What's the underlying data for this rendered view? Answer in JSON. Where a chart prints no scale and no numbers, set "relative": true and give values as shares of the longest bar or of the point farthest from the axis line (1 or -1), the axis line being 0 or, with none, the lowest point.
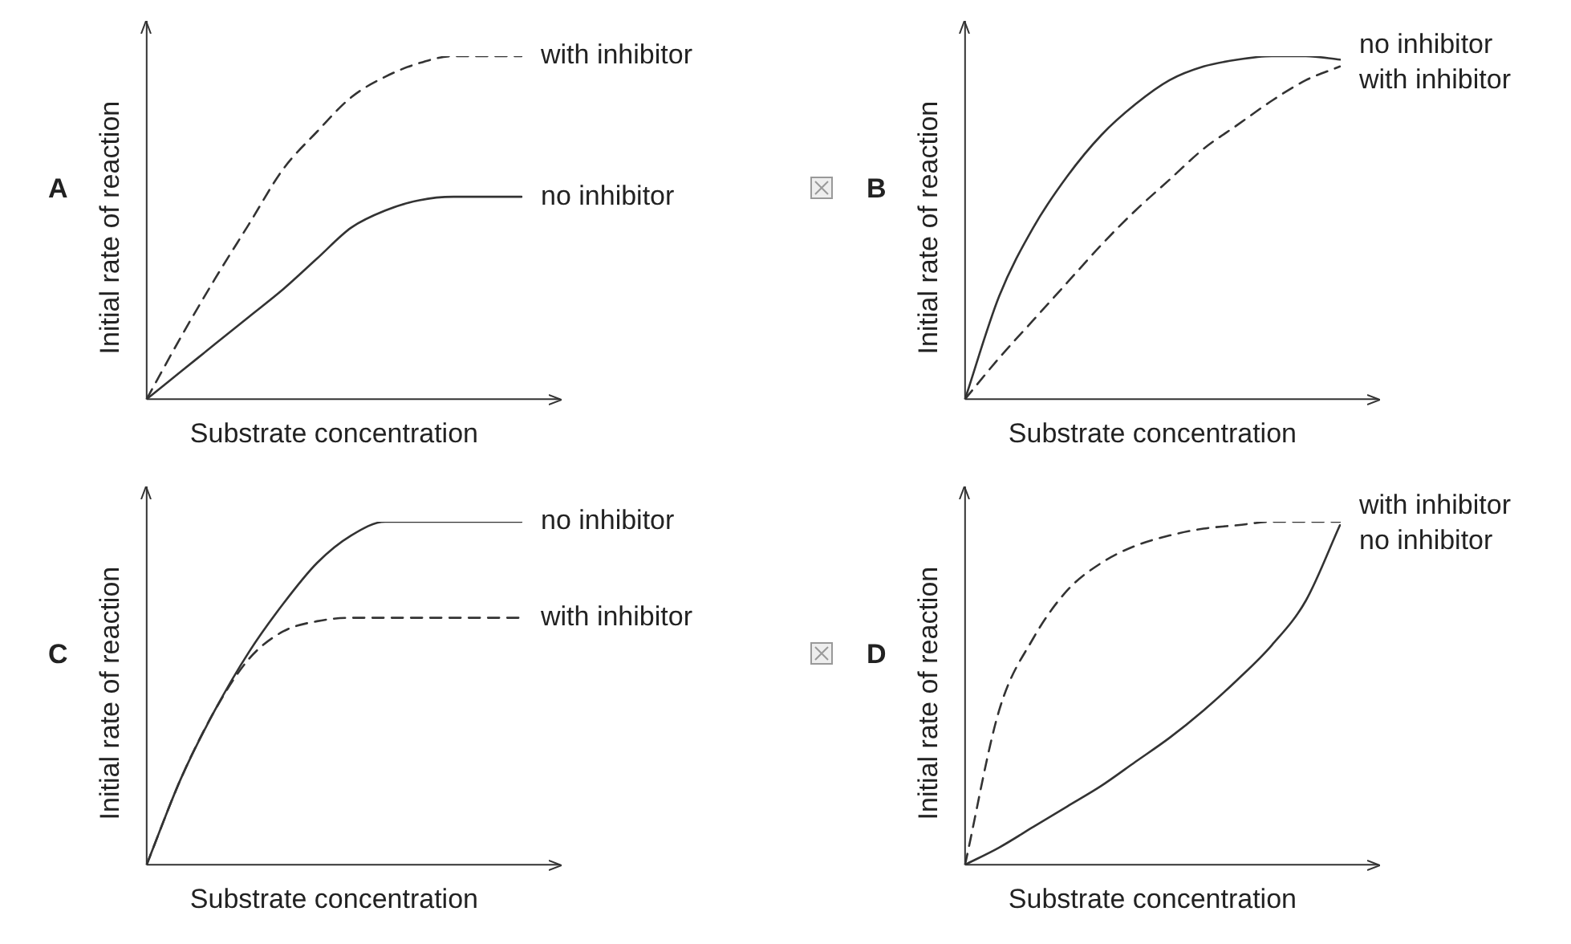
{
  "chart_data": [
    {
      "type": "line",
      "title": "A",
      "xlabel": "Substrate concentration",
      "ylabel": "Initial rate of reaction",
      "relative": true,
      "categories": [
        null,
        null,
        null,
        null,
        null,
        null,
        null,
        null,
        null,
        null,
        null,
        null
      ],
      "series": [
        {
          "name": "with inhibitor",
          "color": "#333333",
          "line_style": "dashed",
          "values": [
            0,
            0.18,
            0.35,
            0.51,
            0.67,
            0.78,
            0.88,
            0.94,
            0.98,
            1,
            1,
            1
          ]
        },
        {
          "name": "no inhibitor",
          "color": "#333333",
          "line_style": "solid",
          "values": [
            0,
            0.08,
            0.16,
            0.24,
            0.32,
            0.41,
            0.5,
            0.55,
            0.58,
            0.59,
            0.59,
            0.59
          ]
        }
      ]
    },
    {
      "type": "line",
      "title": "B",
      "xlabel": "Substrate concentration",
      "ylabel": "Initial rate of reaction",
      "relative": true,
      "categories": [
        null,
        null,
        null,
        null,
        null,
        null,
        null,
        null,
        null,
        null,
        null,
        null
      ],
      "series": [
        {
          "name": "no inhibitor",
          "color": "#333333",
          "line_style": "solid",
          "values": [
            0,
            0.3,
            0.5,
            0.65,
            0.77,
            0.86,
            0.93,
            0.97,
            0.99,
            1,
            1,
            0.99
          ]
        },
        {
          "name": "with inhibitor",
          "color": "#333333",
          "line_style": "dashed",
          "values": [
            0,
            0.12,
            0.23,
            0.34,
            0.45,
            0.55,
            0.64,
            0.73,
            0.8,
            0.87,
            0.93,
            0.97
          ]
        }
      ]
    },
    {
      "type": "line",
      "title": "C",
      "xlabel": "Substrate concentration",
      "ylabel": "Initial rate of reaction",
      "relative": true,
      "categories": [
        null,
        null,
        null,
        null,
        null,
        null,
        null,
        null,
        null,
        null,
        null,
        null
      ],
      "series": [
        {
          "name": "no inhibitor",
          "color": "#333333",
          "line_style": "solid",
          "values": [
            0,
            0.25,
            0.45,
            0.62,
            0.76,
            0.88,
            0.96,
            1,
            1,
            1,
            1,
            1
          ]
        },
        {
          "name": "with inhibitor",
          "color": "#333333",
          "line_style": "dashed",
          "values": [
            0,
            0.25,
            0.45,
            0.6,
            0.68,
            0.71,
            0.72,
            0.72,
            0.72,
            0.72,
            0.72,
            0.72
          ]
        }
      ]
    },
    {
      "type": "line",
      "title": "D",
      "xlabel": "Substrate concentration",
      "ylabel": "Initial rate of reaction",
      "relative": true,
      "categories": [
        null,
        null,
        null,
        null,
        null,
        null,
        null,
        null,
        null,
        null,
        null,
        null
      ],
      "series": [
        {
          "name": "with inhibitor",
          "color": "#333333",
          "line_style": "dashed",
          "values": [
            0,
            0.45,
            0.66,
            0.8,
            0.88,
            0.93,
            0.96,
            0.98,
            0.99,
            1,
            1,
            1
          ]
        },
        {
          "name": "no inhibitor",
          "color": "#333333",
          "line_style": "solid",
          "values": [
            0,
            0.05,
            0.11,
            0.17,
            0.23,
            0.3,
            0.37,
            0.45,
            0.54,
            0.64,
            0.77,
            0.99
          ]
        }
      ]
    }
  ]
}
